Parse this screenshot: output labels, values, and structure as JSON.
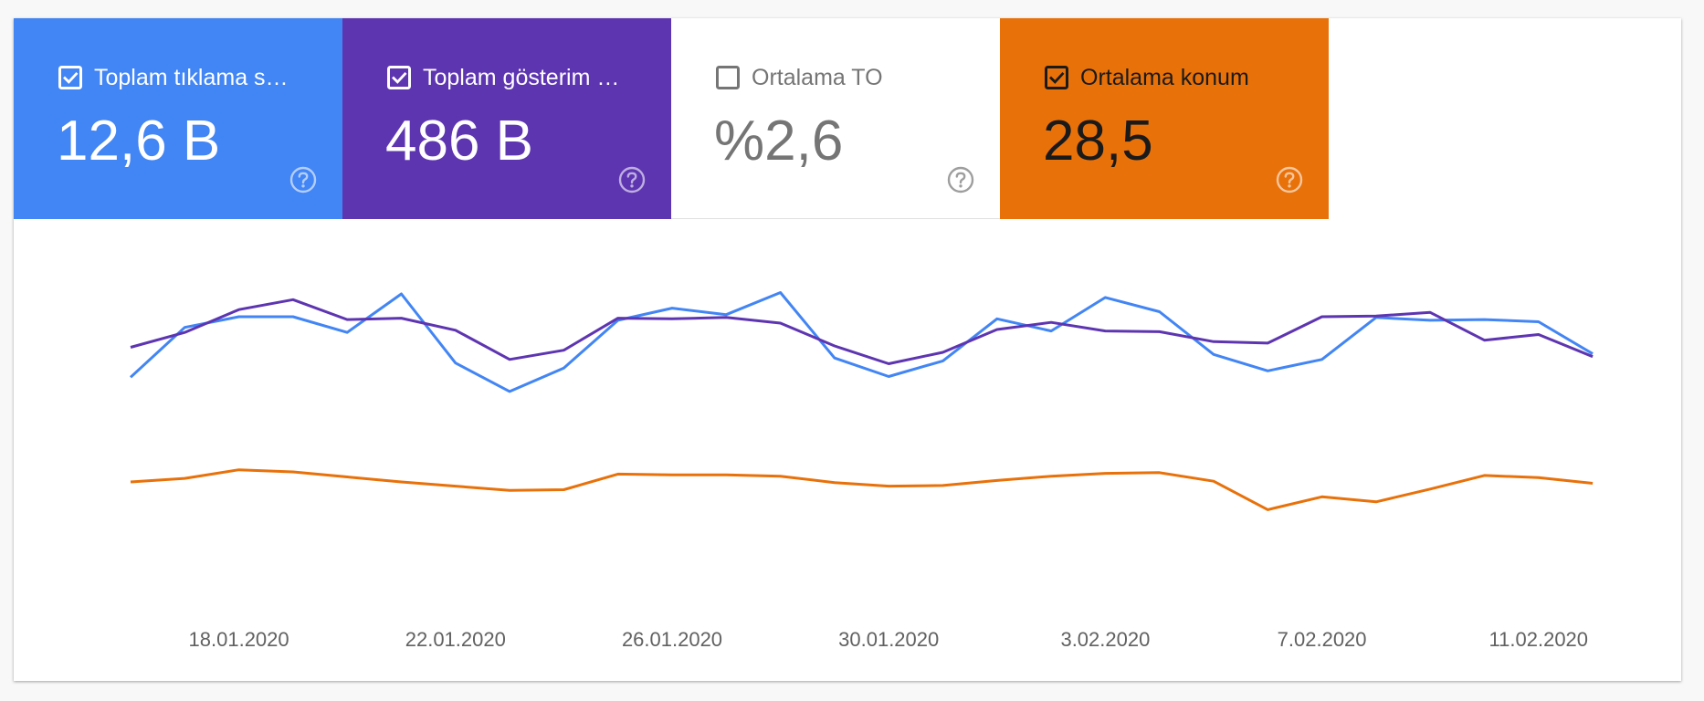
{
  "metrics": [
    {
      "label": "Toplam tıklama sayısı",
      "display_label": "Toplam tıklama s…",
      "value": "12,6 B",
      "checked": true,
      "bg": "#4285f4",
      "fg": "#ffffff",
      "icon": "checkbox-checked-icon"
    },
    {
      "label": "Toplam gösterim sayısı",
      "display_label": "Toplam gösterim …",
      "value": "486 B",
      "checked": true,
      "bg": "#5e35b1",
      "fg": "#ffffff",
      "icon": "checkbox-checked-icon"
    },
    {
      "label": "Ortalama TO",
      "display_label": "Ortalama TO",
      "value": "%2,6",
      "checked": false,
      "bg": "#ffffff",
      "fg": "#757575",
      "icon": "checkbox-empty-icon"
    },
    {
      "label": "Ortalama konum",
      "display_label": "Ortalama konum",
      "value": "28,5",
      "checked": true,
      "bg": "#e8710a",
      "fg": "#1a1a1a",
      "icon": "checkbox-checked-icon"
    }
  ],
  "help_icon": "help-circle-icon",
  "chart_data": {
    "type": "line",
    "x": [
      "16.01.2020",
      "17.01.2020",
      "18.01.2020",
      "19.01.2020",
      "20.01.2020",
      "21.01.2020",
      "22.01.2020",
      "23.01.2020",
      "24.01.2020",
      "25.01.2020",
      "26.01.2020",
      "27.01.2020",
      "28.01.2020",
      "29.01.2020",
      "30.01.2020",
      "31.01.2020",
      "1.02.2020",
      "2.02.2020",
      "3.02.2020",
      "4.02.2020",
      "5.02.2020",
      "6.02.2020",
      "7.02.2020",
      "8.02.2020",
      "9.02.2020",
      "10.02.2020",
      "11.02.2020",
      "12.02.2020"
    ],
    "x_tick_labels": [
      "18.01.2020",
      "22.01.2020",
      "26.01.2020",
      "30.01.2020",
      "3.02.2020",
      "7.02.2020",
      "11.02.2020"
    ],
    "grid": false,
    "series": [
      {
        "name": "Toplam tıklama sayısı",
        "color": "#4285f4",
        "values": [
          0.465,
          0.535,
          0.55,
          0.55,
          0.528,
          0.582,
          0.485,
          0.445,
          0.478,
          0.545,
          0.562,
          0.553,
          0.584,
          0.492,
          0.466,
          0.488,
          0.547,
          0.53,
          0.577,
          0.557,
          0.497,
          0.474,
          0.49,
          0.549,
          0.545,
          0.546,
          0.543,
          0.498
        ]
      },
      {
        "name": "Toplam gösterim sayısı",
        "color": "#5e35b1",
        "values": [
          0.507,
          0.528,
          0.56,
          0.574,
          0.546,
          0.548,
          0.531,
          0.49,
          0.503,
          0.548,
          0.547,
          0.549,
          0.541,
          0.509,
          0.484,
          0.5,
          0.532,
          0.542,
          0.53,
          0.529,
          0.515,
          0.513,
          0.55,
          0.551,
          0.556,
          0.517,
          0.525,
          0.494
        ]
      },
      {
        "name": "Ortalama konum",
        "color": "#e8710a",
        "values": [
          0.318,
          0.323,
          0.335,
          0.332,
          0.325,
          0.318,
          0.312,
          0.306,
          0.307,
          0.329,
          0.328,
          0.328,
          0.326,
          0.317,
          0.312,
          0.313,
          0.32,
          0.326,
          0.33,
          0.331,
          0.319,
          0.279,
          0.297,
          0.29,
          0.308,
          0.327,
          0.324,
          0.316
        ]
      }
    ]
  }
}
